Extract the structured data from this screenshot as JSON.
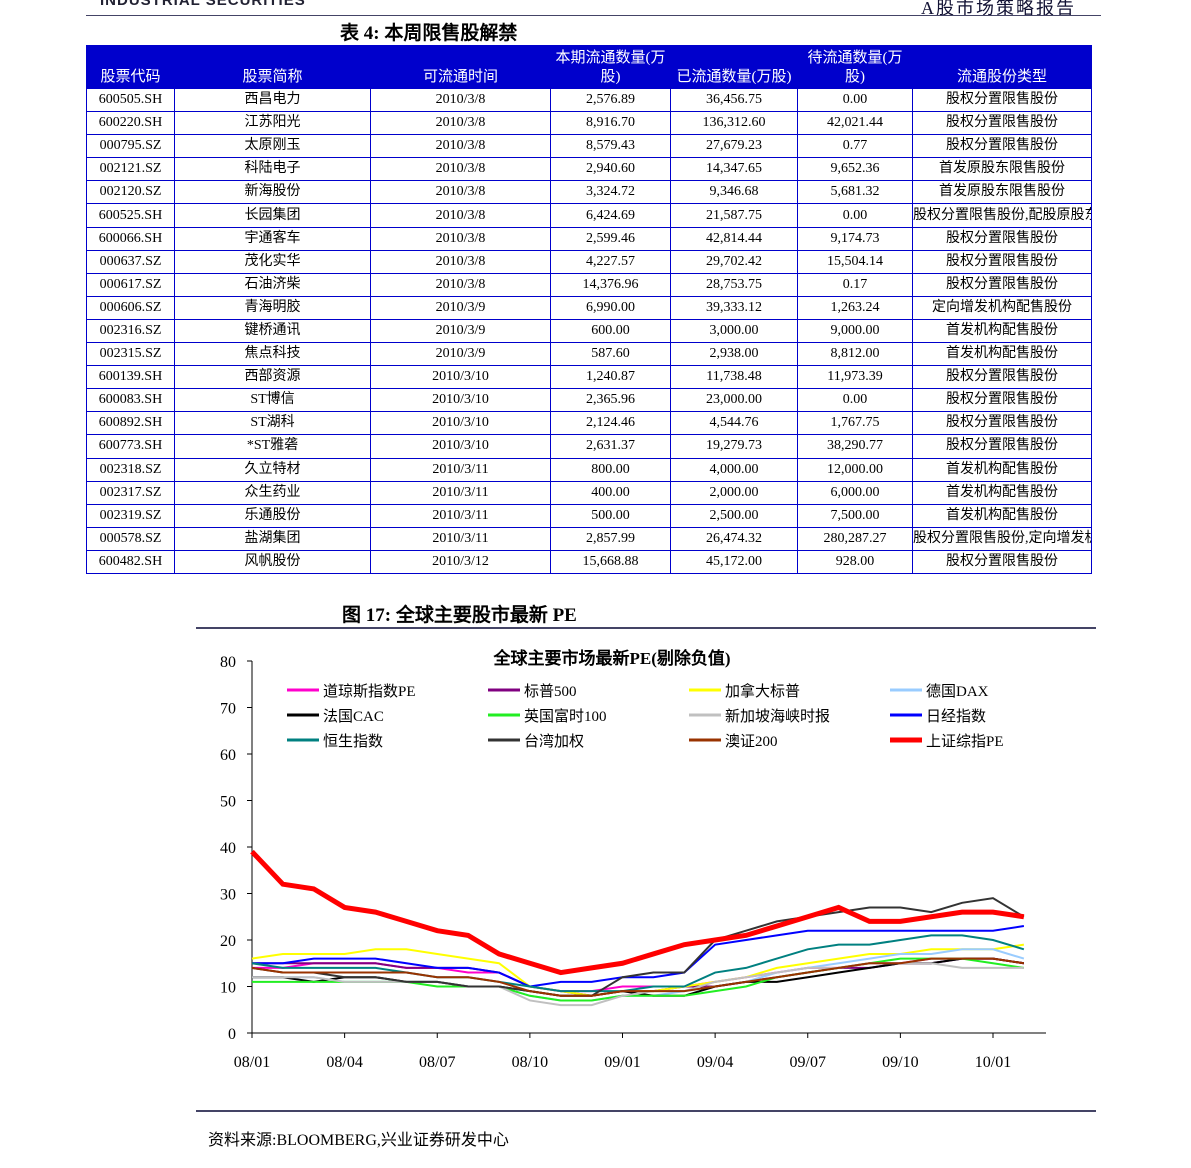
{
  "header": {
    "brand": "INDUSTRIAL SECURITIES",
    "report": "A股市场策略报告"
  },
  "table": {
    "title": "表 4: 本周限售股解禁",
    "columns": [
      "股票代码",
      "股票简称",
      "可流通时间",
      "本期流通数量(万股)",
      "已流通数量(万股)",
      "待流通数量(万股)",
      "流通股份类型"
    ],
    "rows": [
      [
        "600505.SH",
        "西昌电力",
        "2010/3/8",
        "2,576.89",
        "36,456.75",
        "0.00",
        "股权分置限售股份"
      ],
      [
        "600220.SH",
        "江苏阳光",
        "2010/3/8",
        "8,916.70",
        "136,312.60",
        "42,021.44",
        "股权分置限售股份"
      ],
      [
        "000795.SZ",
        "太原刚玉",
        "2010/3/8",
        "8,579.43",
        "27,679.23",
        "0.77",
        "股权分置限售股份"
      ],
      [
        "002121.SZ",
        "科陆电子",
        "2010/3/8",
        "2,940.60",
        "14,347.65",
        "9,652.36",
        "首发原股东限售股份"
      ],
      [
        "002120.SZ",
        "新海股份",
        "2010/3/8",
        "3,324.72",
        "9,346.68",
        "5,681.32",
        "首发原股东限售股份"
      ],
      [
        "600525.SH",
        "长园集团",
        "2010/3/8",
        "6,424.69",
        "21,587.75",
        "0.00",
        "股权分置限售股份,配股原股东限售股份"
      ],
      [
        "600066.SH",
        "宇通客车",
        "2010/3/8",
        "2,599.46",
        "42,814.44",
        "9,174.73",
        "股权分置限售股份"
      ],
      [
        "000637.SZ",
        "茂化实华",
        "2010/3/8",
        "4,227.57",
        "29,702.42",
        "15,504.14",
        "股权分置限售股份"
      ],
      [
        "000617.SZ",
        "石油济柴",
        "2010/3/8",
        "14,376.96",
        "28,753.75",
        "0.17",
        "股权分置限售股份"
      ],
      [
        "000606.SZ",
        "青海明胶",
        "2010/3/9",
        "6,990.00",
        "39,333.12",
        "1,263.24",
        "定向增发机构配售股份"
      ],
      [
        "002316.SZ",
        "键桥通讯",
        "2010/3/9",
        "600.00",
        "3,000.00",
        "9,000.00",
        "首发机构配售股份"
      ],
      [
        "002315.SZ",
        "焦点科技",
        "2010/3/9",
        "587.60",
        "2,938.00",
        "8,812.00",
        "首发机构配售股份"
      ],
      [
        "600139.SH",
        "西部资源",
        "2010/3/10",
        "1,240.87",
        "11,738.48",
        "11,973.39",
        "股权分置限售股份"
      ],
      [
        "600083.SH",
        "ST博信",
        "2010/3/10",
        "2,365.96",
        "23,000.00",
        "0.00",
        "股权分置限售股份"
      ],
      [
        "600892.SH",
        "ST湖科",
        "2010/3/10",
        "2,124.46",
        "4,544.76",
        "1,767.75",
        "股权分置限售股份"
      ],
      [
        "600773.SH",
        "*ST雅砻",
        "2010/3/10",
        "2,631.37",
        "19,279.73",
        "38,290.77",
        "股权分置限售股份"
      ],
      [
        "002318.SZ",
        "久立特材",
        "2010/3/11",
        "800.00",
        "4,000.00",
        "12,000.00",
        "首发机构配售股份"
      ],
      [
        "002317.SZ",
        "众生药业",
        "2010/3/11",
        "400.00",
        "2,000.00",
        "6,000.00",
        "首发机构配售股份"
      ],
      [
        "002319.SZ",
        "乐通股份",
        "2010/3/11",
        "500.00",
        "2,500.00",
        "7,500.00",
        "首发机构配售股份"
      ],
      [
        "000578.SZ",
        "盐湖集团",
        "2010/3/11",
        "2,857.99",
        "26,474.32",
        "280,287.27",
        "股权分置限售股份,定向增发机构配售股份"
      ],
      [
        "600482.SH",
        "风帆股份",
        "2010/3/12",
        "15,668.88",
        "45,172.00",
        "928.00",
        "股权分置限售股份"
      ]
    ]
  },
  "figure_title": "图 17: 全球主要股市最新 PE",
  "chart_data": {
    "type": "line",
    "title": "全球主要市场最新PE(剔除负值)",
    "categories": [
      "08/01",
      null,
      null,
      "08/04",
      null,
      null,
      "08/07",
      null,
      null,
      "08/10",
      null,
      null,
      "09/01",
      null,
      null,
      "09/04",
      null,
      null,
      "09/07",
      null,
      null,
      "09/10",
      null,
      null,
      "10/01",
      null
    ],
    "ylim": [
      0,
      80
    ],
    "yticks": [
      0,
      10,
      20,
      30,
      40,
      50,
      60,
      70,
      80
    ],
    "series": [
      {
        "name": "道琼斯指数PE",
        "color": "#ff00cc",
        "values": [
          14,
          14,
          15,
          15,
          15,
          14,
          14,
          13,
          13,
          10,
          9,
          9,
          10,
          10,
          10,
          11,
          12,
          13,
          14,
          14,
          15,
          15,
          16,
          16,
          16,
          15
        ]
      },
      {
        "name": "标普500",
        "color": "#800080",
        "values": [
          15,
          15,
          15,
          15,
          15,
          14,
          14,
          14,
          13,
          10,
          9,
          8,
          9,
          9,
          10,
          10,
          11,
          12,
          13,
          14,
          14,
          15,
          15,
          16,
          16,
          15
        ]
      },
      {
        "name": "加拿大标普",
        "color": "#ffff00",
        "values": [
          16,
          17,
          17,
          17,
          18,
          18,
          17,
          16,
          15,
          10,
          9,
          8,
          9,
          9,
          10,
          11,
          12,
          14,
          15,
          16,
          17,
          17,
          18,
          18,
          18,
          19
        ]
      },
      {
        "name": "德国DAX",
        "color": "#99ccff",
        "values": [
          12,
          12,
          12,
          11,
          11,
          11,
          11,
          10,
          10,
          8,
          7,
          7,
          8,
          8,
          9,
          10,
          11,
          13,
          14,
          15,
          16,
          17,
          17,
          18,
          18,
          16
        ]
      },
      {
        "name": "法国CAC",
        "color": "#000000",
        "values": [
          12,
          12,
          11,
          12,
          12,
          11,
          11,
          10,
          10,
          9,
          8,
          8,
          9,
          8,
          8,
          10,
          11,
          11,
          12,
          13,
          14,
          15,
          15,
          16,
          16,
          15
        ]
      },
      {
        "name": "英国富时100",
        "color": "#22ee22",
        "values": [
          11,
          11,
          11,
          11,
          11,
          11,
          10,
          10,
          10,
          8,
          7,
          7,
          8,
          8,
          8,
          9,
          10,
          12,
          13,
          14,
          15,
          16,
          16,
          16,
          15,
          14
        ]
      },
      {
        "name": "新加坡海峡时报",
        "color": "#c0c0c0",
        "values": [
          12,
          12,
          12,
          11,
          11,
          11,
          11,
          10,
          10,
          7,
          6,
          6,
          8,
          9,
          9,
          11,
          12,
          13,
          14,
          14,
          15,
          15,
          15,
          14,
          14,
          14
        ]
      },
      {
        "name": "日经指数",
        "color": "#0000ff",
        "values": [
          15,
          15,
          16,
          16,
          16,
          15,
          14,
          14,
          13,
          10,
          11,
          11,
          12,
          12,
          13,
          19,
          20,
          21,
          22,
          22,
          22,
          22,
          22,
          22,
          22,
          23
        ]
      },
      {
        "name": "恒生指数",
        "color": "#008080",
        "values": [
          15,
          14,
          14,
          14,
          14,
          13,
          12,
          12,
          11,
          10,
          9,
          9,
          9,
          10,
          10,
          13,
          14,
          16,
          18,
          19,
          19,
          20,
          21,
          21,
          20,
          18
        ]
      },
      {
        "name": "台湾加权",
        "color": "#333333",
        "values": [
          14,
          13,
          13,
          12,
          12,
          11,
          11,
          10,
          10,
          9,
          8,
          8,
          12,
          13,
          13,
          20,
          22,
          24,
          25,
          26,
          27,
          27,
          26,
          28,
          29,
          25
        ]
      },
      {
        "name": "澳证200",
        "color": "#993300",
        "values": [
          14,
          13,
          13,
          13,
          13,
          13,
          12,
          12,
          11,
          9,
          8,
          8,
          9,
          9,
          9,
          10,
          11,
          12,
          13,
          14,
          15,
          15,
          16,
          16,
          16,
          15
        ]
      },
      {
        "name": "上证综指PE",
        "color": "#ff0000",
        "values": [
          39,
          32,
          31,
          27,
          26,
          24,
          22,
          21,
          17,
          15,
          13,
          14,
          15,
          17,
          19,
          20,
          21,
          23,
          25,
          27,
          24,
          24,
          25,
          26,
          26,
          25
        ]
      }
    ]
  },
  "source": "资料来源:BLOOMBERG,兴业证券研发中心"
}
